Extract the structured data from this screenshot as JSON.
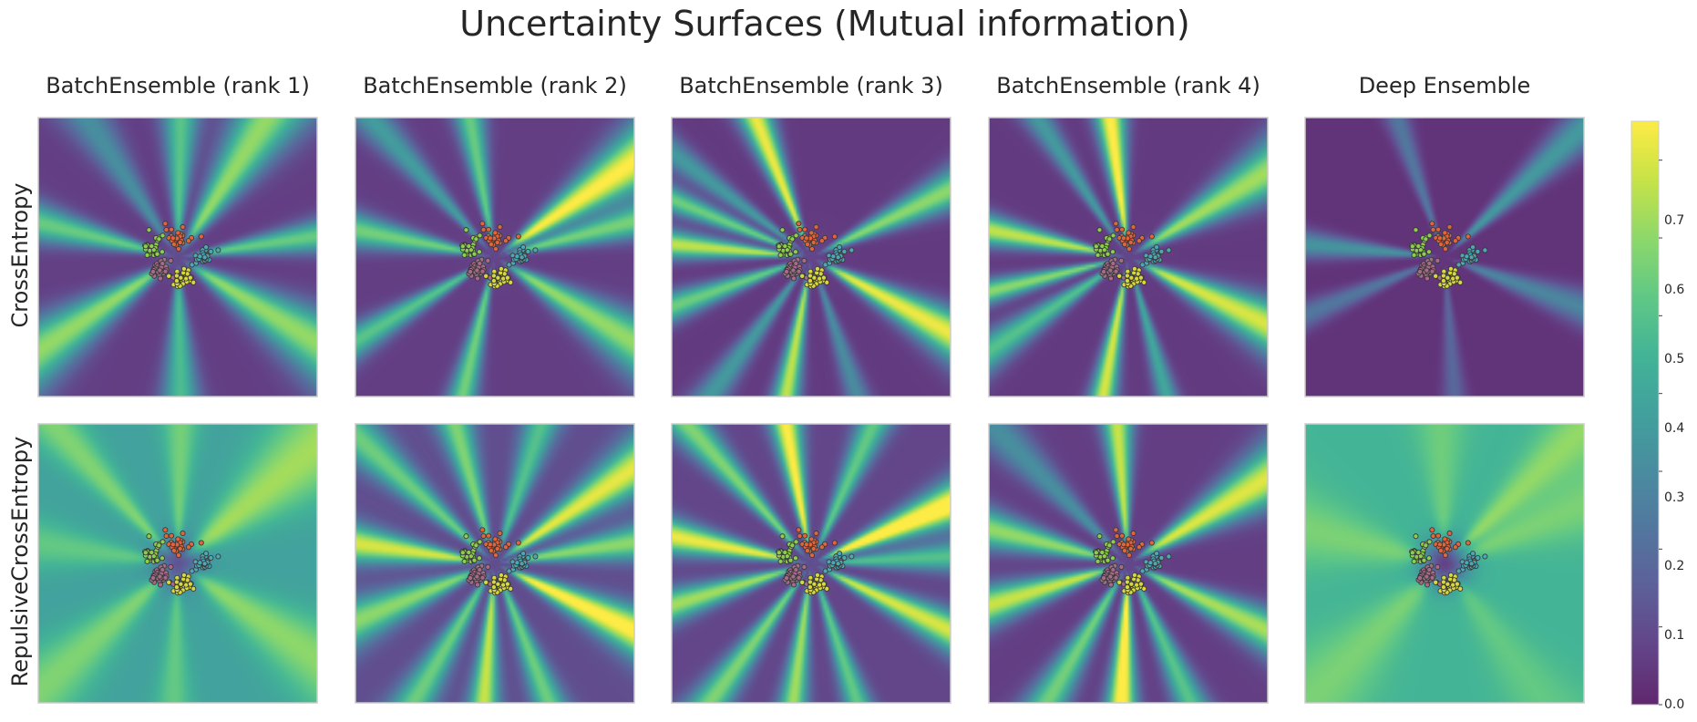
{
  "chart_data": {
    "type": "heatmap",
    "title": "Uncertainty Surfaces (Mutual information)",
    "columns": [
      "BatchEnsemble (rank 1)",
      "BatchEnsemble (rank 2)",
      "BatchEnsemble (rank 3)",
      "BatchEnsemble (rank 4)",
      "Deep Ensemble"
    ],
    "rows": [
      "CrossEntropy",
      "RepulsiveCrossEntropy"
    ],
    "colormap": "viridis",
    "colorbar": {
      "vmin": 0.0,
      "vmax": 0.75,
      "ticks": [
        "0.0",
        "0.1",
        "0.2",
        "0.3",
        "0.4",
        "0.5",
        "0.6",
        "0.7"
      ]
    },
    "clusters": [
      {
        "color": "#e0643c",
        "center": [
          0.0,
          0.4
        ]
      },
      {
        "color": "#8ccf4a",
        "center": [
          -0.55,
          0.22
        ]
      },
      {
        "color": "#4ba8b8",
        "center": [
          0.55,
          0.0
        ]
      },
      {
        "color": "#a86a8a",
        "center": [
          -0.4,
          -0.28
        ]
      },
      {
        "color": "#d8d83c",
        "center": [
          0.1,
          -0.45
        ]
      }
    ],
    "panels": [
      {
        "row": 0,
        "col": 0,
        "base": 0.06,
        "center": 0.1,
        "beams": [
          [
            -2.55,
            0.18,
            0.55
          ],
          [
            -1.55,
            0.12,
            0.42
          ],
          [
            -0.55,
            0.2,
            0.55
          ],
          [
            0.15,
            0.09,
            0.48
          ],
          [
            1.0,
            0.2,
            0.55
          ],
          [
            1.55,
            0.12,
            0.45
          ],
          [
            2.15,
            0.12,
            0.25
          ],
          [
            2.9,
            0.12,
            0.48
          ]
        ]
      },
      {
        "row": 0,
        "col": 1,
        "base": 0.06,
        "center": 0.08,
        "beams": [
          [
            -2.6,
            0.07,
            0.45
          ],
          [
            -1.8,
            0.07,
            0.5
          ],
          [
            -0.55,
            0.16,
            0.55
          ],
          [
            0.25,
            0.09,
            0.5
          ],
          [
            0.6,
            0.16,
            0.7
          ],
          [
            1.75,
            0.08,
            0.48
          ],
          [
            2.3,
            0.07,
            0.3
          ],
          [
            2.95,
            0.1,
            0.5
          ]
        ]
      },
      {
        "row": 0,
        "col": 2,
        "base": 0.05,
        "center": 0.08,
        "beams": [
          [
            -2.8,
            0.07,
            0.5
          ],
          [
            -2.2,
            0.06,
            0.3
          ],
          [
            -1.75,
            0.06,
            0.62
          ],
          [
            -1.25,
            0.05,
            0.25
          ],
          [
            -0.5,
            0.13,
            0.68
          ],
          [
            0.45,
            0.1,
            0.55
          ],
          [
            1.95,
            0.08,
            0.68
          ],
          [
            2.5,
            0.05,
            0.3
          ],
          [
            3.05,
            0.07,
            0.62
          ],
          [
            2.75,
            0.05,
            0.5
          ]
        ]
      },
      {
        "row": 0,
        "col": 3,
        "base": 0.05,
        "center": 0.08,
        "beams": [
          [
            -2.9,
            0.05,
            0.55
          ],
          [
            -2.55,
            0.08,
            0.45
          ],
          [
            -1.75,
            0.06,
            0.65
          ],
          [
            -1.3,
            0.04,
            0.35
          ],
          [
            -0.45,
            0.15,
            0.65
          ],
          [
            0.55,
            0.15,
            0.58
          ],
          [
            1.7,
            0.08,
            0.72
          ],
          [
            2.15,
            0.05,
            0.3
          ],
          [
            2.95,
            0.08,
            0.62
          ]
        ]
      },
      {
        "row": 0,
        "col": 4,
        "base": 0.03,
        "center": 0.04,
        "beams": [
          [
            -2.75,
            0.06,
            0.2
          ],
          [
            -1.5,
            0.05,
            0.15
          ],
          [
            -0.35,
            0.1,
            0.25
          ],
          [
            0.75,
            0.08,
            0.32
          ],
          [
            1.9,
            0.05,
            0.2
          ],
          [
            3.05,
            0.07,
            0.3
          ]
        ]
      },
      {
        "row": 1,
        "col": 0,
        "base": 0.38,
        "center": 0.12,
        "beams": [
          [
            -2.4,
            0.22,
            0.2
          ],
          [
            -1.6,
            0.12,
            0.15
          ],
          [
            -0.6,
            0.25,
            0.22
          ],
          [
            0.7,
            0.3,
            0.25
          ],
          [
            1.55,
            0.12,
            0.18
          ],
          [
            2.3,
            0.12,
            0.2
          ],
          [
            3.0,
            0.18,
            0.15
          ]
        ]
      },
      {
        "row": 1,
        "col": 1,
        "base": 0.1,
        "center": 0.1,
        "beams": [
          [
            -2.75,
            0.14,
            0.5
          ],
          [
            -2.1,
            0.1,
            0.45
          ],
          [
            -1.65,
            0.08,
            0.58
          ],
          [
            -1.2,
            0.08,
            0.45
          ],
          [
            -0.45,
            0.13,
            0.68
          ],
          [
            0.15,
            0.1,
            0.5
          ],
          [
            0.6,
            0.13,
            0.62
          ],
          [
            1.25,
            0.1,
            0.4
          ],
          [
            1.85,
            0.1,
            0.48
          ],
          [
            2.4,
            0.1,
            0.45
          ],
          [
            3.0,
            0.12,
            0.6
          ]
        ]
      },
      {
        "row": 1,
        "col": 2,
        "base": 0.08,
        "center": 0.1,
        "beams": [
          [
            -2.85,
            0.09,
            0.55
          ],
          [
            -2.2,
            0.08,
            0.5
          ],
          [
            -1.7,
            0.07,
            0.55
          ],
          [
            -1.25,
            0.06,
            0.45
          ],
          [
            -0.45,
            0.1,
            0.62
          ],
          [
            0.05,
            0.08,
            0.42
          ],
          [
            0.4,
            0.12,
            0.75
          ],
          [
            1.15,
            0.08,
            0.45
          ],
          [
            1.75,
            0.08,
            0.68
          ],
          [
            2.3,
            0.07,
            0.5
          ],
          [
            2.95,
            0.1,
            0.65
          ]
        ]
      },
      {
        "row": 1,
        "col": 3,
        "base": 0.06,
        "center": 0.08,
        "beams": [
          [
            -2.85,
            0.12,
            0.62
          ],
          [
            -2.1,
            0.1,
            0.5
          ],
          [
            -1.62,
            0.08,
            0.75
          ],
          [
            -1.15,
            0.08,
            0.45
          ],
          [
            -0.45,
            0.12,
            0.58
          ],
          [
            0.55,
            0.16,
            0.65
          ],
          [
            1.65,
            0.08,
            0.62
          ],
          [
            2.35,
            0.1,
            0.25
          ],
          [
            2.9,
            0.12,
            0.55
          ]
        ]
      },
      {
        "row": 1,
        "col": 4,
        "base": 0.45,
        "center": 0.07,
        "beams": [
          [
            -2.35,
            0.3,
            0.12
          ],
          [
            -0.95,
            0.22,
            0.08
          ],
          [
            0.4,
            0.25,
            0.12
          ],
          [
            0.78,
            0.15,
            0.15
          ],
          [
            1.6,
            0.2,
            0.1
          ],
          [
            2.9,
            0.3,
            0.12
          ]
        ]
      }
    ]
  }
}
